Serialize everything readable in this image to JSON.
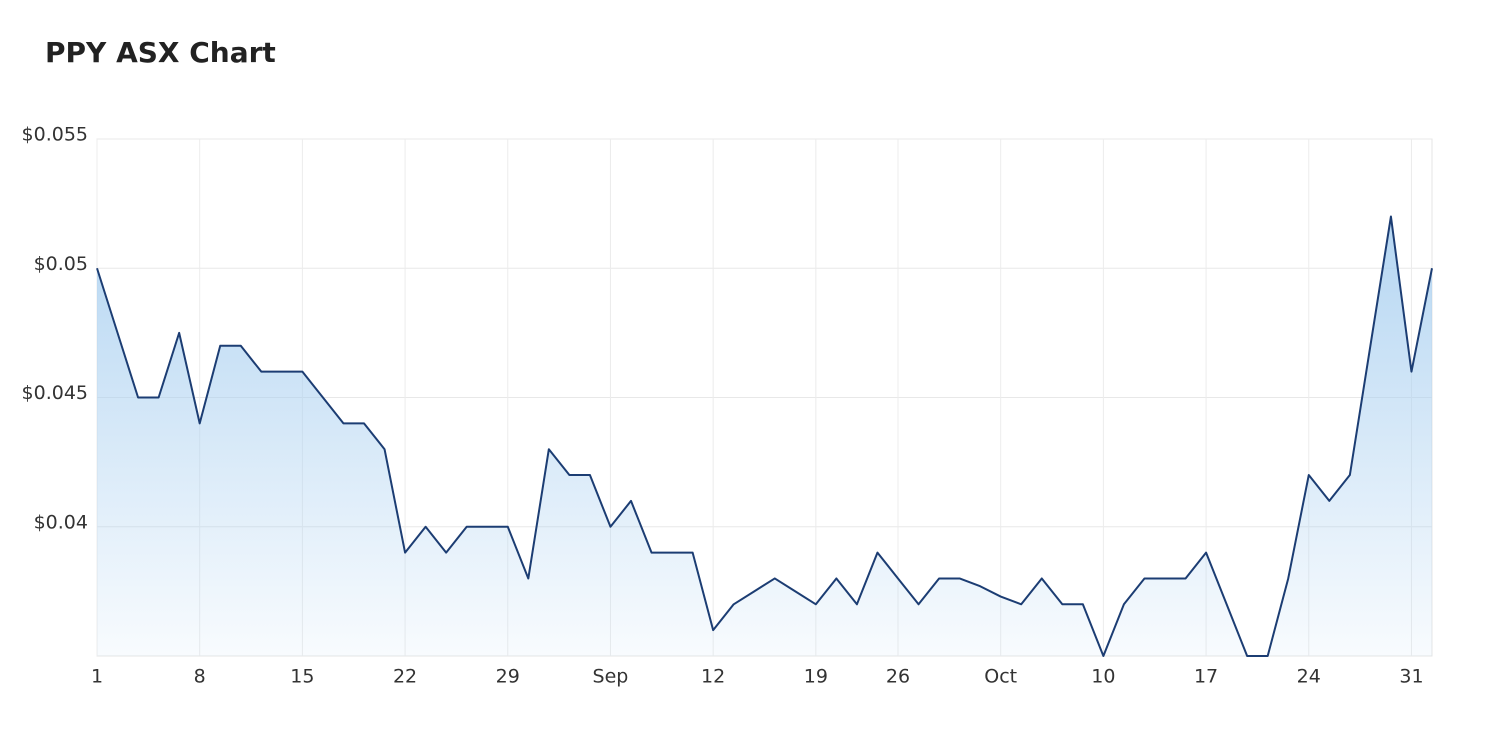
{
  "chart_data": {
    "type": "area",
    "title": "PPY ASX Chart",
    "categories": [
      "1",
      null,
      null,
      null,
      null,
      "8",
      null,
      null,
      null,
      null,
      "15",
      null,
      null,
      null,
      null,
      "22",
      null,
      null,
      null,
      null,
      "29",
      null,
      null,
      null,
      null,
      "Sep",
      null,
      null,
      null,
      null,
      "12",
      null,
      null,
      null,
      null,
      "19",
      null,
      null,
      null,
      "26",
      null,
      null,
      null,
      null,
      "Oct",
      null,
      null,
      null,
      null,
      "10",
      null,
      null,
      null,
      null,
      "17",
      null,
      null,
      null,
      null,
      "24",
      null,
      null,
      null,
      null,
      "31",
      null
    ],
    "values": [
      0.05,
      0.0475,
      0.045,
      0.045,
      0.0475,
      0.044,
      0.047,
      0.047,
      0.046,
      0.046,
      0.046,
      0.045,
      0.044,
      0.044,
      0.043,
      0.039,
      0.04,
      0.039,
      0.04,
      0.04,
      0.04,
      0.038,
      0.043,
      0.042,
      0.042,
      0.04,
      0.041,
      0.039,
      0.039,
      0.039,
      0.036,
      0.037,
      0.0375,
      0.038,
      0.0375,
      0.037,
      0.038,
      0.037,
      0.039,
      0.038,
      0.037,
      0.038,
      0.038,
      0.0377,
      0.0373,
      0.037,
      0.038,
      0.037,
      0.037,
      0.035,
      0.037,
      0.038,
      0.038,
      0.038,
      0.039,
      0.037,
      0.035,
      0.035,
      0.038,
      0.042,
      0.041,
      0.042,
      0.047,
      0.052,
      0.046,
      0.05
    ],
    "color": "#1c3d73",
    "fill_color": "#a8cff0",
    "ylim": [
      0.035,
      0.055
    ],
    "yticks": [
      {
        "value": 0.04,
        "label": "$0.04"
      },
      {
        "value": 0.045,
        "label": "$0.045"
      },
      {
        "value": 0.05,
        "label": "$0.05"
      },
      {
        "value": 0.055,
        "label": "$0.055"
      }
    ],
    "grid": true
  }
}
